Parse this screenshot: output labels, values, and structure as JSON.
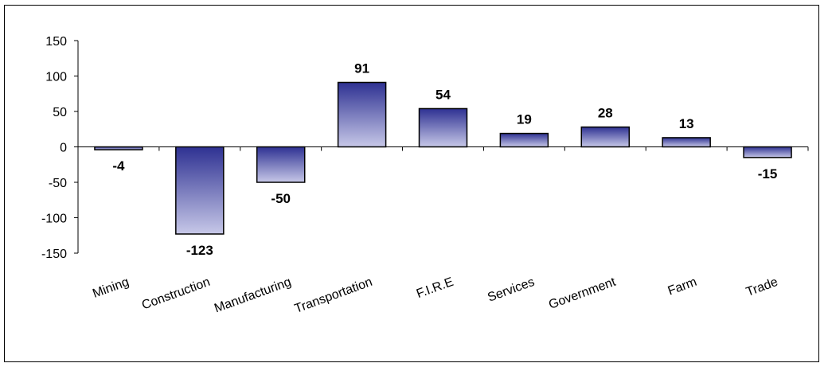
{
  "chart_data": {
    "type": "bar",
    "categories": [
      "Mining",
      "Construction",
      "Manufacturing",
      "Transportation",
      "F.I.R.E",
      "Services",
      "Government",
      "Farm",
      "Trade"
    ],
    "values": [
      -4,
      -123,
      -50,
      91,
      54,
      19,
      28,
      13,
      -15
    ],
    "data_labels": [
      "-4",
      "-123",
      "-50",
      "91",
      "54",
      "19",
      "28",
      "13",
      "-15"
    ],
    "title": "",
    "xlabel": "",
    "ylabel": "",
    "ylim": [
      -150,
      150
    ],
    "yticks": [
      150,
      100,
      50,
      0,
      -50,
      -100,
      -150
    ],
    "ytick_labels": [
      "150",
      "100",
      "50",
      "0",
      "-50",
      "-100",
      "-150"
    ],
    "grid": false,
    "legend": "none",
    "colors": {
      "bar_dark": "#2e3192",
      "bar_light": "#c7c8e8",
      "bar_border": "#000000",
      "axis": "#000000"
    }
  }
}
